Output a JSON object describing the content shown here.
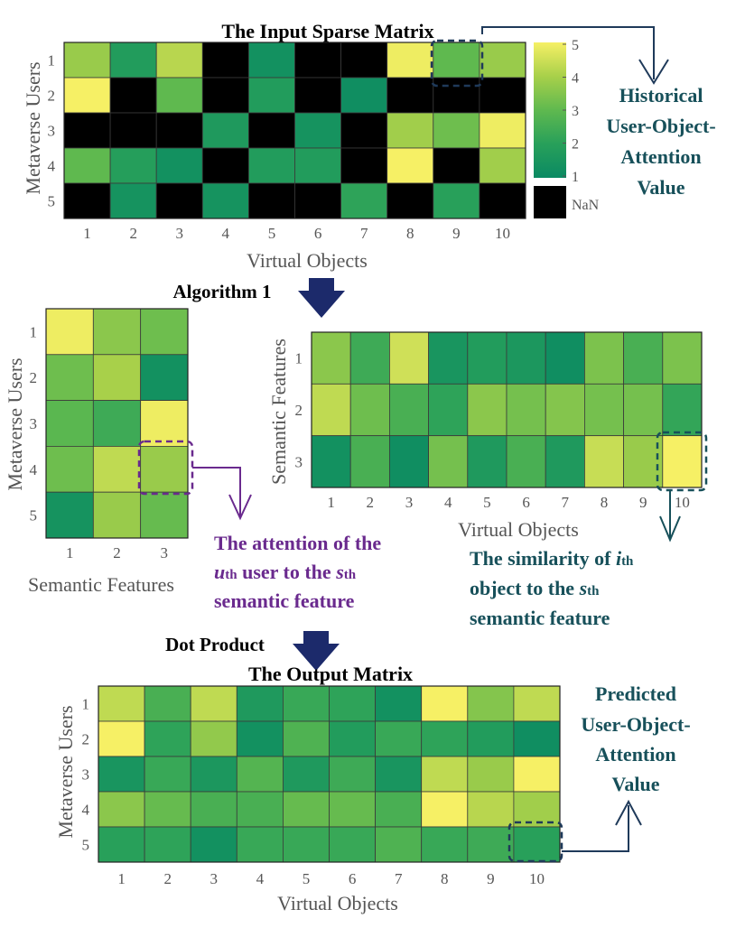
{
  "colors": {
    "nan": "#000000",
    "scale": [
      "#0a8a63",
      "#28a05a",
      "#5fb94f",
      "#a8d04a",
      "#f6f065"
    ],
    "annot_purple": "#6a2a8e",
    "annot_teal": "#17505a",
    "arrow_navy": "#1c2a6b",
    "dashed_box": "#1f3a5a"
  },
  "top": {
    "title": "The Input Sparse Matrix",
    "ylabel": "Metaverse Users",
    "xlabel": "Virtual Objects",
    "xticks": [
      "1",
      "2",
      "3",
      "4",
      "5",
      "6",
      "7",
      "8",
      "9",
      "10"
    ],
    "yticks": [
      "1",
      "2",
      "3",
      "4",
      "5"
    ],
    "values": [
      [
        3.8,
        1.8,
        4.2,
        null,
        1.3,
        null,
        null,
        4.9,
        3.0,
        3.8
      ],
      [
        5.0,
        null,
        3.0,
        null,
        1.8,
        null,
        1.2,
        null,
        null,
        null
      ],
      [
        null,
        null,
        null,
        1.7,
        null,
        1.4,
        null,
        3.9,
        3.2,
        4.9
      ],
      [
        3.0,
        1.9,
        1.3,
        null,
        1.8,
        1.8,
        null,
        5.0,
        null,
        3.9
      ],
      [
        null,
        1.4,
        null,
        1.4,
        null,
        null,
        2.1,
        null,
        2.0,
        null
      ]
    ],
    "colorbar": {
      "ticks": [
        "5",
        "4",
        "3",
        "2",
        "1"
      ],
      "nan_label": "NaN"
    },
    "annotation": [
      "Historical",
      "User-Object-",
      "Attention",
      "Value"
    ]
  },
  "step1": {
    "label": "Algorithm 1"
  },
  "left": {
    "ylabel": "Metaverse Users",
    "xlabel": "Semantic Features",
    "xticks": [
      "1",
      "2",
      "3"
    ],
    "yticks": [
      "1",
      "2",
      "3",
      "4",
      "5"
    ],
    "values": [
      [
        4.9,
        3.6,
        3.2
      ],
      [
        3.2,
        4.0,
        1.3
      ],
      [
        2.9,
        2.4,
        4.9
      ],
      [
        3.2,
        4.3,
        3.8
      ],
      [
        1.4,
        3.8,
        3.1
      ]
    ],
    "annotation": {
      "line1": "The attention of the",
      "line2_var": "u",
      "line2_sub": "th",
      "line2_mid": " user to the ",
      "line2_var2": "s",
      "line2_sub2": "th",
      "line3": "semantic feature"
    }
  },
  "right": {
    "ylabel": "Semantic Features",
    "xlabel": "Virtual Objects",
    "xticks": [
      "1",
      "2",
      "3",
      "4",
      "5",
      "6",
      "7",
      "8",
      "9",
      "10"
    ],
    "yticks": [
      "1",
      "2",
      "3"
    ],
    "values": [
      [
        3.6,
        2.4,
        4.5,
        1.5,
        1.8,
        1.6,
        1.2,
        3.4,
        2.6,
        3.4
      ],
      [
        4.3,
        3.2,
        2.6,
        2.1,
        3.6,
        3.3,
        3.5,
        3.3,
        3.3,
        2.2
      ],
      [
        1.3,
        2.6,
        1.2,
        3.3,
        1.7,
        2.6,
        1.7,
        4.4,
        3.8,
        5.0
      ]
    ],
    "annotation": {
      "line1_pre": "The similarity of ",
      "line1_var": "i",
      "line1_sub": "th",
      "line2_pre": "object to the ",
      "line2_var": "s",
      "line2_sub": "th",
      "line3": "semantic feature"
    }
  },
  "step2": {
    "label": "Dot Product"
  },
  "bottom": {
    "title": "The Output Matrix",
    "ylabel": "Metaverse Users",
    "xlabel": "Virtual Objects",
    "xticks": [
      "1",
      "2",
      "3",
      "4",
      "5",
      "6",
      "7",
      "8",
      "9",
      "10"
    ],
    "yticks": [
      "1",
      "2",
      "3",
      "4",
      "5"
    ],
    "values": [
      [
        4.3,
        2.6,
        4.3,
        1.7,
        2.3,
        2.1,
        1.3,
        5.0,
        3.5,
        4.3
      ],
      [
        5.0,
        2.1,
        3.7,
        1.3,
        2.7,
        1.8,
        2.3,
        2.1,
        1.8,
        1.2
      ],
      [
        1.5,
        2.3,
        1.6,
        2.8,
        1.7,
        2.4,
        1.5,
        4.3,
        3.8,
        5.0
      ],
      [
        3.6,
        3.1,
        2.6,
        2.6,
        3.1,
        3.1,
        2.6,
        5.0,
        4.2,
        3.9
      ],
      [
        2.0,
        2.1,
        1.3,
        2.3,
        2.3,
        2.3,
        2.7,
        2.3,
        2.4,
        2.0
      ]
    ],
    "annotation": [
      "Predicted",
      "User-Object-",
      "Attention",
      "Value"
    ]
  }
}
